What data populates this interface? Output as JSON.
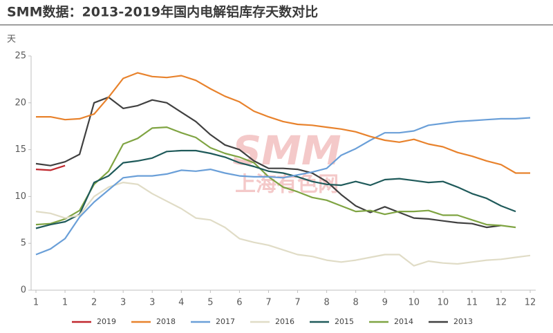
{
  "chart_data": {
    "type": "line",
    "title": "SMM数据：2013-2019年国内电解铝库存天数对比",
    "y_label": "天",
    "watermark": "SMM",
    "watermark_subtitle": "上海有色网",
    "x": [
      0,
      0.5,
      1,
      1.5,
      2,
      2.5,
      3,
      3.5,
      4,
      4.5,
      5,
      5.5,
      6,
      6.5,
      7,
      7.5,
      8,
      8.5,
      9,
      9.5,
      10,
      10.5,
      11,
      11.5,
      12,
      12.5,
      13,
      13.5,
      14,
      14.5,
      15,
      15.5,
      16,
      16.5,
      17
    ],
    "xlim": [
      0,
      17
    ],
    "xticks": [
      {
        "value": 0,
        "label": "1"
      },
      {
        "value": 1,
        "label": "1"
      },
      {
        "value": 2,
        "label": "2"
      },
      {
        "value": 3,
        "label": "3"
      },
      {
        "value": 4,
        "label": "3"
      },
      {
        "value": 5,
        "label": "4"
      },
      {
        "value": 6,
        "label": "5"
      },
      {
        "value": 7,
        "label": "6"
      },
      {
        "value": 8,
        "label": "7"
      },
      {
        "value": 9,
        "label": "7"
      },
      {
        "value": 10,
        "label": "8"
      },
      {
        "value": 11,
        "label": "8"
      },
      {
        "value": 12,
        "label": "9"
      },
      {
        "value": 13,
        "label": "10"
      },
      {
        "value": 14,
        "label": "10"
      },
      {
        "value": 15,
        "label": "11"
      },
      {
        "value": 16,
        "label": "12"
      },
      {
        "value": 17,
        "label": "12"
      }
    ],
    "ylim": [
      0,
      25
    ],
    "yticks": [
      0,
      5,
      10,
      15,
      20,
      25
    ],
    "grid": false,
    "legend": "bottom",
    "series": [
      {
        "name": "2019",
        "color": "#c0272d",
        "values": [
          12.9,
          12.8,
          13.3,
          null,
          null,
          null,
          null,
          null,
          null,
          null,
          null,
          null,
          null,
          null,
          null,
          null,
          null,
          null,
          null,
          null,
          null,
          null,
          null,
          null,
          null,
          null,
          null,
          null,
          null,
          null,
          null,
          null,
          null,
          null,
          null
        ]
      },
      {
        "name": "2018",
        "color": "#e8822c",
        "values": [
          18.5,
          18.5,
          18.2,
          18.3,
          18.8,
          20.6,
          22.6,
          23.2,
          22.8,
          22.7,
          22.9,
          22.4,
          21.5,
          20.7,
          20.1,
          19.1,
          18.5,
          18.0,
          17.7,
          17.6,
          17.4,
          17.2,
          16.9,
          16.4,
          16.0,
          15.8,
          16.1,
          15.6,
          15.3,
          14.7,
          14.3,
          13.8,
          13.4,
          12.5,
          12.5
        ]
      },
      {
        "name": "2017",
        "color": "#6a9fd8",
        "values": [
          3.8,
          4.4,
          5.5,
          7.8,
          9.4,
          10.7,
          12.0,
          12.2,
          12.2,
          12.4,
          12.8,
          12.7,
          12.9,
          12.5,
          12.2,
          12.1,
          12.1,
          12.0,
          12.3,
          12.6,
          13.0,
          14.4,
          15.1,
          16.0,
          16.8,
          16.8,
          17.0,
          17.6,
          17.8,
          18.0,
          18.1,
          18.2,
          18.3,
          18.3,
          18.4
        ]
      },
      {
        "name": "2016",
        "color": "#e0dcc6",
        "values": [
          8.4,
          8.2,
          7.7,
          8.0,
          10.0,
          11.0,
          11.5,
          11.3,
          10.3,
          9.5,
          8.7,
          7.7,
          7.5,
          6.7,
          5.5,
          5.1,
          4.8,
          4.3,
          3.8,
          3.6,
          3.2,
          3.0,
          3.2,
          3.5,
          3.8,
          3.8,
          2.6,
          3.1,
          2.9,
          2.8,
          3.0,
          3.2,
          3.3,
          3.5,
          3.7
        ]
      },
      {
        "name": "2015",
        "color": "#1f5a5a",
        "values": [
          6.6,
          7.0,
          7.3,
          8.1,
          11.5,
          12.2,
          13.6,
          13.8,
          14.1,
          14.8,
          14.9,
          14.9,
          14.6,
          14.2,
          13.6,
          13.2,
          12.7,
          12.5,
          12.1,
          11.6,
          11.3,
          11.2,
          11.6,
          11.2,
          11.8,
          11.9,
          11.7,
          11.5,
          11.6,
          11.0,
          10.3,
          9.8,
          9.0,
          8.4,
          null
        ]
      },
      {
        "name": "2014",
        "color": "#7fa442",
        "values": [
          7.0,
          7.1,
          7.6,
          8.5,
          11.3,
          12.7,
          15.6,
          16.2,
          17.3,
          17.4,
          16.8,
          16.3,
          15.2,
          14.6,
          14.2,
          13.6,
          12.1,
          11.0,
          10.5,
          9.9,
          9.6,
          9.0,
          8.4,
          8.5,
          8.1,
          8.4,
          8.4,
          8.5,
          8.0,
          8.0,
          7.5,
          7.0,
          6.9,
          6.7,
          null
        ]
      },
      {
        "name": "2013",
        "color": "#404040",
        "values": [
          13.5,
          13.3,
          13.7,
          14.5,
          20.0,
          20.6,
          19.4,
          19.7,
          20.3,
          20.0,
          19.0,
          18.0,
          16.6,
          15.5,
          15.0,
          13.8,
          13.0,
          13.0,
          12.9,
          12.5,
          11.6,
          10.2,
          9.0,
          8.3,
          8.9,
          8.3,
          7.7,
          7.6,
          7.4,
          7.2,
          7.1,
          6.7,
          6.9,
          null,
          null
        ]
      }
    ]
  }
}
